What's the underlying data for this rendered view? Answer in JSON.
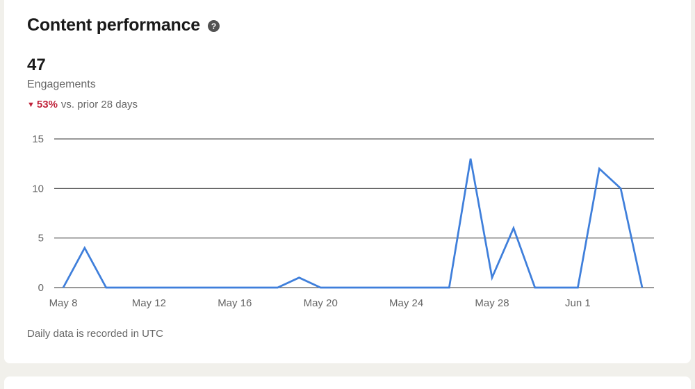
{
  "card": {
    "title": "Content performance",
    "help_icon_label": "?",
    "metric_value": "47",
    "metric_label": "Engagements",
    "trend_arrow": "▼",
    "trend_percent": "53%",
    "trend_caption": "vs. prior 28 days",
    "footnote": "Daily data is recorded in UTC"
  },
  "chart_data": {
    "type": "line",
    "title": "",
    "xlabel": "",
    "ylabel": "",
    "x": [
      "May 8",
      "May 9",
      "May 10",
      "May 11",
      "May 12",
      "May 13",
      "May 14",
      "May 15",
      "May 16",
      "May 17",
      "May 18",
      "May 19",
      "May 20",
      "May 21",
      "May 22",
      "May 23",
      "May 24",
      "May 25",
      "May 26",
      "May 27",
      "May 28",
      "May 29",
      "May 30",
      "May 31",
      "Jun 1",
      "Jun 2",
      "Jun 3",
      "Jun 4"
    ],
    "series": [
      {
        "name": "Engagements",
        "values": [
          0,
          4,
          0,
          0,
          0,
          0,
          0,
          0,
          0,
          0,
          0,
          1,
          0,
          0,
          0,
          0,
          0,
          0,
          0,
          13,
          1,
          6,
          0,
          0,
          0,
          12,
          10,
          0
        ]
      }
    ],
    "x_tick_labels": [
      "May 8",
      "May 12",
      "May 16",
      "May 20",
      "May 24",
      "May 28",
      "Jun 1"
    ],
    "x_tick_indices": [
      0,
      4,
      8,
      12,
      16,
      20,
      24
    ],
    "y_ticks": [
      0,
      5,
      10,
      15
    ],
    "ylim": [
      0,
      15
    ],
    "grid": true,
    "legend": "none",
    "line_color": "#3f7fdb",
    "grid_color": "#5a5a5a",
    "tick_label_color": "#666666"
  },
  "colors": {
    "page_background": "#f1f0eb",
    "card_background": "#ffffff",
    "text_primary": "#1a1a1a",
    "text_secondary": "#666666",
    "trend_negative": "#c0243c",
    "help_icon_background": "#525252"
  }
}
